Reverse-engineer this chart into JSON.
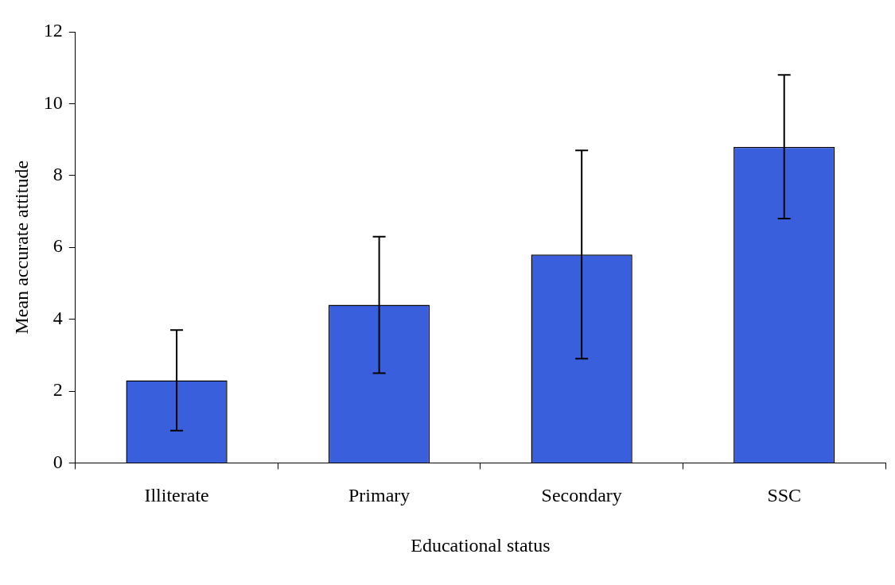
{
  "chart_data": {
    "type": "bar",
    "xlabel": "Educational status",
    "ylabel": "Mean accurate attitude",
    "categories": [
      "Illiterate",
      "Primary",
      "Secondary",
      "SSC"
    ],
    "values": [
      2.3,
      4.4,
      5.8,
      8.8
    ],
    "errors": [
      1.4,
      1.9,
      2.9,
      2
    ],
    "color": "#3a5fdc",
    "ylim": [
      0,
      12
    ],
    "yticks": [
      0,
      2,
      4,
      6,
      8,
      10,
      12
    ],
    "grid": false,
    "legend": false
  }
}
